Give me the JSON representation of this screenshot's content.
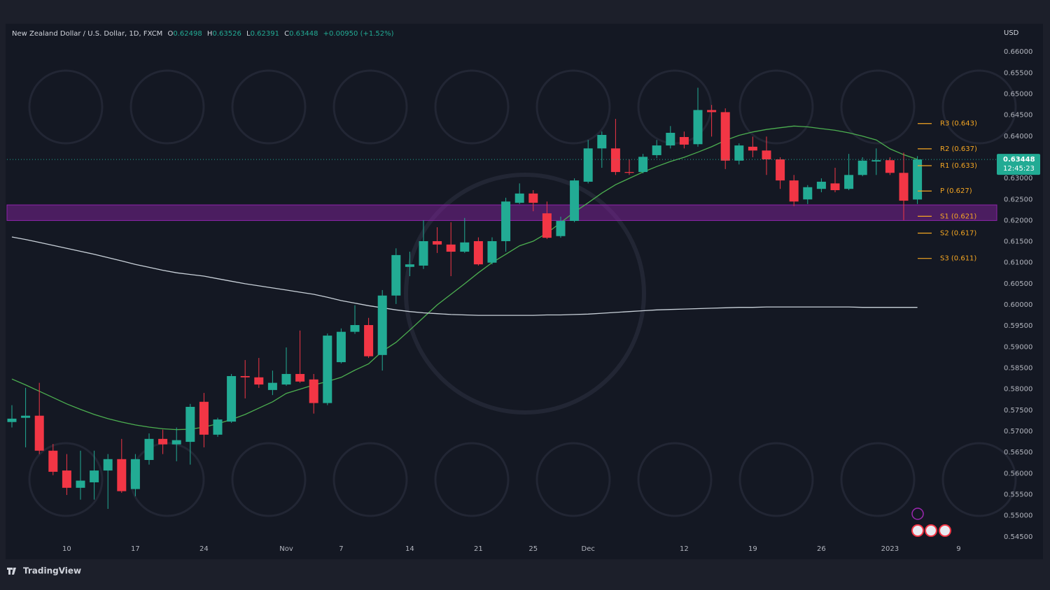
{
  "header": {
    "symbol": "New Zealand Dollar / U.S. Dollar, 1D, FXCM",
    "o_label": "O",
    "h_label": "H",
    "l_label": "L",
    "c_label": "C",
    "change": "+0.00950 (+1.52%)"
  },
  "chart_data": {
    "type": "candlestick",
    "currency": "USD",
    "categories": [
      null,
      null,
      null,
      null,
      "10",
      null,
      null,
      null,
      null,
      "17",
      null,
      null,
      null,
      null,
      "24",
      null,
      null,
      null,
      null,
      null,
      "Nov",
      null,
      null,
      null,
      "7",
      null,
      null,
      null,
      null,
      "14",
      null,
      null,
      null,
      null,
      "21",
      null,
      null,
      null,
      "25",
      null,
      null,
      null,
      "Dec",
      null,
      null,
      null,
      null,
      null,
      null,
      "12",
      null,
      null,
      null,
      null,
      "19",
      null,
      null,
      null,
      null,
      "26",
      null,
      null,
      null,
      null,
      "2023",
      null,
      null,
      null,
      null,
      "9"
    ],
    "open": [
      0.5722,
      0.5732,
      0.5737,
      0.5654,
      0.5607,
      0.5566,
      0.5579,
      0.5607,
      0.5634,
      0.5563,
      0.5632,
      0.5682,
      0.5669,
      0.5675,
      0.577,
      0.5692,
      0.5723,
      0.5831,
      0.5828,
      0.5798,
      0.5811,
      0.5836,
      0.5823,
      0.5767,
      0.5864,
      0.5936,
      0.5952,
      0.5881,
      0.6022,
      0.609,
      0.6093,
      0.6151,
      0.6143,
      0.6126,
      0.6151,
      0.61,
      0.6151,
      0.6242,
      0.6264,
      0.6217,
      0.6163,
      0.6199,
      0.6292,
      0.6371,
      0.6371,
      0.6315,
      0.6315,
      0.6355,
      0.6378,
      0.6398,
      0.6381,
      0.6462,
      0.6457,
      0.6342,
      0.6375,
      0.6366,
      0.6345,
      0.6295,
      0.625,
      0.6275,
      0.6288,
      0.6275,
      0.6308,
      0.634,
      0.6343,
      0.6313,
      0.62498,
      null,
      null,
      null
    ],
    "high": [
      0.5762,
      0.5803,
      0.5815,
      0.567,
      0.5646,
      0.5654,
      0.5654,
      0.5646,
      0.5682,
      0.5646,
      0.5695,
      0.5704,
      0.5709,
      0.5765,
      0.5791,
      0.5732,
      0.5836,
      0.5869,
      0.5874,
      0.5844,
      0.5899,
      0.5939,
      0.5836,
      0.5932,
      0.5944,
      0.5999,
      0.5969,
      0.6035,
      0.6134,
      0.6126,
      0.6201,
      0.6184,
      0.6196,
      0.6206,
      0.616,
      0.616,
      0.6254,
      0.6288,
      0.6272,
      0.6245,
      0.6209,
      0.63,
      0.6391,
      0.6411,
      0.6441,
      0.6345,
      0.6358,
      0.6391,
      0.6424,
      0.6411,
      0.6515,
      0.6474,
      0.6466,
      0.6383,
      0.6399,
      0.6399,
      0.635,
      0.6308,
      0.6284,
      0.63,
      0.6325,
      0.6358,
      0.635,
      0.6371,
      0.635,
      0.6361,
      0.63526,
      null,
      null,
      null
    ],
    "low": [
      0.5709,
      0.5662,
      0.5646,
      0.5596,
      0.5549,
      0.5538,
      0.5538,
      0.5516,
      0.5554,
      0.5546,
      0.5621,
      0.5646,
      0.5629,
      0.5621,
      0.5662,
      0.5687,
      0.572,
      0.5778,
      0.5803,
      0.5786,
      0.5808,
      0.5815,
      0.5742,
      0.5762,
      0.5861,
      0.5931,
      0.5874,
      0.5844,
      0.6002,
      0.6068,
      0.6085,
      0.6123,
      0.6068,
      0.6123,
      0.6093,
      0.6096,
      0.6126,
      0.6239,
      0.6222,
      0.6156,
      0.6159,
      0.6196,
      0.6288,
      0.6325,
      0.6308,
      0.6308,
      0.6312,
      0.6348,
      0.6371,
      0.6371,
      0.6375,
      0.6399,
      0.6322,
      0.6333,
      0.635,
      0.6308,
      0.6275,
      0.6234,
      0.6239,
      0.6267,
      0.6267,
      0.6272,
      0.6305,
      0.6308,
      0.6308,
      0.6201,
      0.62391,
      null,
      null,
      null
    ],
    "close": [
      0.573,
      0.5737,
      0.5654,
      0.5604,
      0.5566,
      0.5583,
      0.5607,
      0.5634,
      0.5558,
      0.5634,
      0.5682,
      0.5669,
      0.5679,
      0.5758,
      0.5692,
      0.5728,
      0.5831,
      0.5828,
      0.5811,
      0.5815,
      0.5836,
      0.5818,
      0.5767,
      0.5927,
      0.5936,
      0.5952,
      0.5878,
      0.6022,
      0.6118,
      0.6096,
      0.6151,
      0.6143,
      0.6126,
      0.6148,
      0.6096,
      0.6151,
      0.6245,
      0.6264,
      0.6242,
      0.6159,
      0.6199,
      0.6295,
      0.6371,
      0.6403,
      0.6315,
      0.6313,
      0.6351,
      0.6378,
      0.6408,
      0.638,
      0.6462,
      0.6457,
      0.6342,
      0.6378,
      0.6366,
      0.6345,
      0.6295,
      0.6245,
      0.6279,
      0.6292,
      0.6272,
      0.6308,
      0.6342,
      0.6343,
      0.6313,
      0.6247,
      0.63448,
      null,
      null,
      null
    ],
    "up_color": "#22ab94",
    "down_color": "#f23645",
    "ylim": [
      0.5438,
      0.666
    ],
    "yticks": [
      {
        "value": 0.66,
        "label": "0.66000"
      },
      {
        "value": 0.655,
        "label": "0.65500"
      },
      {
        "value": 0.65,
        "label": "0.65000"
      },
      {
        "value": 0.645,
        "label": "0.64500"
      },
      {
        "value": 0.64,
        "label": "0.64000"
      },
      {
        "value": 0.635,
        "label": "0.63500"
      },
      {
        "value": 0.63,
        "label": "0.63000"
      },
      {
        "value": 0.625,
        "label": "0.62500"
      },
      {
        "value": 0.62,
        "label": "0.62000"
      },
      {
        "value": 0.615,
        "label": "0.61500"
      },
      {
        "value": 0.61,
        "label": "0.61000"
      },
      {
        "value": 0.605,
        "label": "0.60500"
      },
      {
        "value": 0.6,
        "label": "0.60000"
      },
      {
        "value": 0.595,
        "label": "0.59500"
      },
      {
        "value": 0.59,
        "label": "0.59000"
      },
      {
        "value": 0.585,
        "label": "0.58500"
      },
      {
        "value": 0.58,
        "label": "0.58000"
      },
      {
        "value": 0.575,
        "label": "0.57500"
      },
      {
        "value": 0.57,
        "label": "0.57000"
      },
      {
        "value": 0.565,
        "label": "0.56500"
      },
      {
        "value": 0.56,
        "label": "0.56000"
      },
      {
        "value": 0.555,
        "label": "0.55500"
      },
      {
        "value": 0.55,
        "label": "0.55000"
      },
      {
        "value": 0.545,
        "label": "0.54500"
      }
    ],
    "lines": [
      {
        "color": "#4caf50",
        "values": [
          0.5824,
          0.581,
          0.5795,
          0.578,
          0.5765,
          0.5752,
          0.574,
          0.573,
          0.5722,
          0.5715,
          0.571,
          0.5706,
          0.5704,
          0.5705,
          0.571,
          0.5718,
          0.5728,
          0.574,
          0.5755,
          0.577,
          0.579,
          0.58,
          0.581,
          0.5818,
          0.5828,
          0.5845,
          0.586,
          0.589,
          0.5911,
          0.594,
          0.597,
          0.6,
          0.6025,
          0.605,
          0.6076,
          0.61,
          0.612,
          0.614,
          0.6151,
          0.617,
          0.6195,
          0.622,
          0.6242,
          0.6265,
          0.6285,
          0.63,
          0.6315,
          0.6328,
          0.634,
          0.635,
          0.6362,
          0.6375,
          0.639,
          0.6402,
          0.641,
          0.6416,
          0.642,
          0.6424,
          0.6422,
          0.6418,
          0.6414,
          0.6408,
          0.64,
          0.6391,
          0.637,
          0.6356,
          0.6345,
          null,
          null,
          null
        ]
      },
      {
        "color": "#c9d1d9",
        "values": [
          0.6161,
          0.6155,
          0.6148,
          0.6141,
          0.6134,
          0.6127,
          0.612,
          0.6112,
          0.6104,
          0.6096,
          0.6089,
          0.6082,
          0.6076,
          0.6072,
          0.6068,
          0.6062,
          0.6056,
          0.605,
          0.6045,
          0.604,
          0.6035,
          0.603,
          0.6025,
          0.6018,
          0.601,
          0.6004,
          0.5998,
          0.5993,
          0.5988,
          0.5984,
          0.5981,
          0.5979,
          0.5977,
          0.5976,
          0.5975,
          0.5975,
          0.5975,
          0.5975,
          0.5975,
          0.5976,
          0.5976,
          0.5977,
          0.5978,
          0.598,
          0.5982,
          0.5984,
          0.5986,
          0.5988,
          0.5989,
          0.599,
          0.5991,
          0.5992,
          0.5993,
          0.5994,
          0.5994,
          0.5995,
          0.5995,
          0.5995,
          0.5995,
          0.5995,
          0.5995,
          0.5995,
          0.5994,
          0.5994,
          0.5994,
          0.5994,
          0.5994,
          null,
          null,
          null
        ]
      }
    ],
    "pivots": [
      {
        "text": "R3 (0.643)",
        "value": 0.643
      },
      {
        "text": "R2 (0.637)",
        "value": 0.637
      },
      {
        "text": "R1 (0.633)",
        "value": 0.633
      },
      {
        "text": "P (0.627)",
        "value": 0.627
      },
      {
        "text": "S1 (0.621)",
        "value": 0.621
      },
      {
        "text": "S2 (0.617)",
        "value": 0.617
      },
      {
        "text": "S3 (0.611)",
        "value": 0.611
      }
    ],
    "pivot_color": "#f5a623",
    "zone": {
      "from": 0.62,
      "to": 0.6237,
      "color": "#8e24aa"
    },
    "countdown": "12:45:23"
  },
  "footer": {
    "brand": "TradingView"
  }
}
